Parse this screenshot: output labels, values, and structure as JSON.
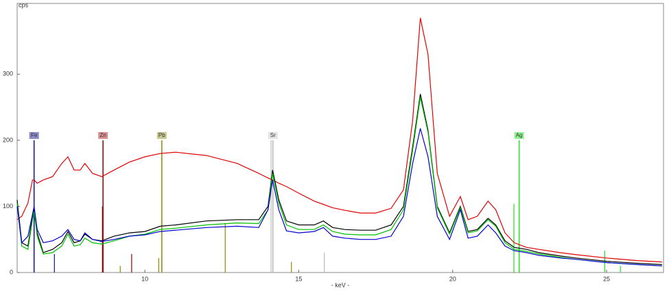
{
  "chart_data": {
    "type": "line",
    "y_unit": "cps",
    "xlabel": "- keV -",
    "xlim": [
      5.85,
      26.85
    ],
    "ylim": [
      0,
      407
    ],
    "xticks": [
      10,
      15,
      20,
      25
    ],
    "yticks": [
      0,
      100,
      200,
      300
    ],
    "x": [
      5.85,
      6.0,
      6.2,
      6.35,
      6.4,
      6.5,
      6.7,
      7.0,
      7.3,
      7.5,
      7.7,
      7.9,
      8.05,
      8.3,
      8.6,
      9.0,
      9.5,
      10.0,
      10.5,
      11.0,
      12.0,
      13.0,
      13.7,
      14.0,
      14.15,
      14.35,
      14.6,
      15.0,
      15.5,
      15.8,
      16.1,
      16.5,
      17.0,
      17.5,
      18.0,
      18.4,
      18.7,
      18.95,
      19.2,
      19.5,
      19.9,
      20.25,
      20.5,
      20.8,
      21.15,
      21.4,
      21.7,
      22.0,
      22.4,
      22.8,
      23.5,
      24.0,
      25.0,
      26.0,
      26.8
    ],
    "series": [
      {
        "color": "#e00000",
        "values": [
          80,
          85,
          105,
          140,
          140,
          135,
          140,
          145,
          165,
          175,
          155,
          155,
          165,
          150,
          145,
          155,
          167,
          175,
          180,
          182,
          177,
          165,
          150,
          143,
          140,
          135,
          130,
          120,
          108,
          103,
          98,
          94,
          90,
          90,
          97,
          125,
          230,
          385,
          330,
          150,
          85,
          115,
          80,
          85,
          108,
          95,
          60,
          45,
          38,
          35,
          30,
          27,
          22,
          18,
          16
        ]
      },
      {
        "color": "#000000",
        "values": [
          110,
          45,
          40,
          85,
          95,
          60,
          30,
          35,
          45,
          62,
          45,
          48,
          58,
          50,
          48,
          55,
          60,
          62,
          70,
          72,
          78,
          80,
          80,
          100,
          155,
          110,
          78,
          72,
          72,
          78,
          68,
          65,
          64,
          64,
          72,
          100,
          190,
          270,
          215,
          100,
          60,
          100,
          62,
          65,
          82,
          72,
          48,
          38,
          35,
          30,
          25,
          22,
          17,
          14,
          12
        ]
      },
      {
        "color": "#00c000",
        "values": [
          105,
          40,
          35,
          80,
          92,
          55,
          28,
          30,
          40,
          58,
          40,
          42,
          52,
          45,
          43,
          48,
          55,
          58,
          65,
          67,
          72,
          75,
          74,
          95,
          150,
          105,
          72,
          65,
          65,
          72,
          62,
          58,
          57,
          57,
          65,
          95,
          185,
          265,
          212,
          98,
          58,
          98,
          60,
          63,
          80,
          70,
          45,
          35,
          32,
          28,
          23,
          20,
          15,
          12,
          10
        ]
      },
      {
        "color": "#0000d0",
        "values": [
          100,
          45,
          55,
          88,
          100,
          65,
          45,
          48,
          55,
          65,
          50,
          48,
          60,
          50,
          47,
          50,
          55,
          57,
          62,
          64,
          68,
          70,
          68,
          95,
          140,
          95,
          63,
          60,
          62,
          68,
          55,
          52,
          50,
          50,
          55,
          85,
          165,
          218,
          175,
          85,
          50,
          95,
          52,
          55,
          72,
          60,
          40,
          33,
          30,
          26,
          22,
          20,
          15,
          12,
          10
        ]
      }
    ],
    "element_lines": [
      {
        "label": "Fe",
        "color": "#10108a",
        "label_color": "#8a8ac8",
        "x": [
          6.4,
          7.06
        ],
        "values": [
          200,
          28
        ]
      },
      {
        "label": "Zn",
        "color": "#900000",
        "label_color": "#d89090",
        "x": [
          8.64,
          8.62,
          9.57
        ],
        "values": [
          200,
          100,
          28
        ]
      },
      {
        "label": "Pb",
        "color": "#8a8a00",
        "label_color": "#c8c890",
        "x": [
          10.55,
          10.45,
          12.61,
          9.2,
          14.76
        ],
        "values": [
          200,
          22,
          75,
          10,
          16
        ]
      },
      {
        "label": "Sr",
        "color": "#b8b8b8",
        "label_color": "#e4e4e4",
        "x": [
          14.16,
          14.1,
          15.83
        ],
        "values": [
          200,
          200,
          30
        ]
      },
      {
        "label": "Ag",
        "color": "#20e020",
        "label_color": "#90f090",
        "x": [
          22.16,
          21.99,
          24.94,
          25.45
        ],
        "values": [
          200,
          104,
          33,
          10
        ]
      }
    ]
  }
}
